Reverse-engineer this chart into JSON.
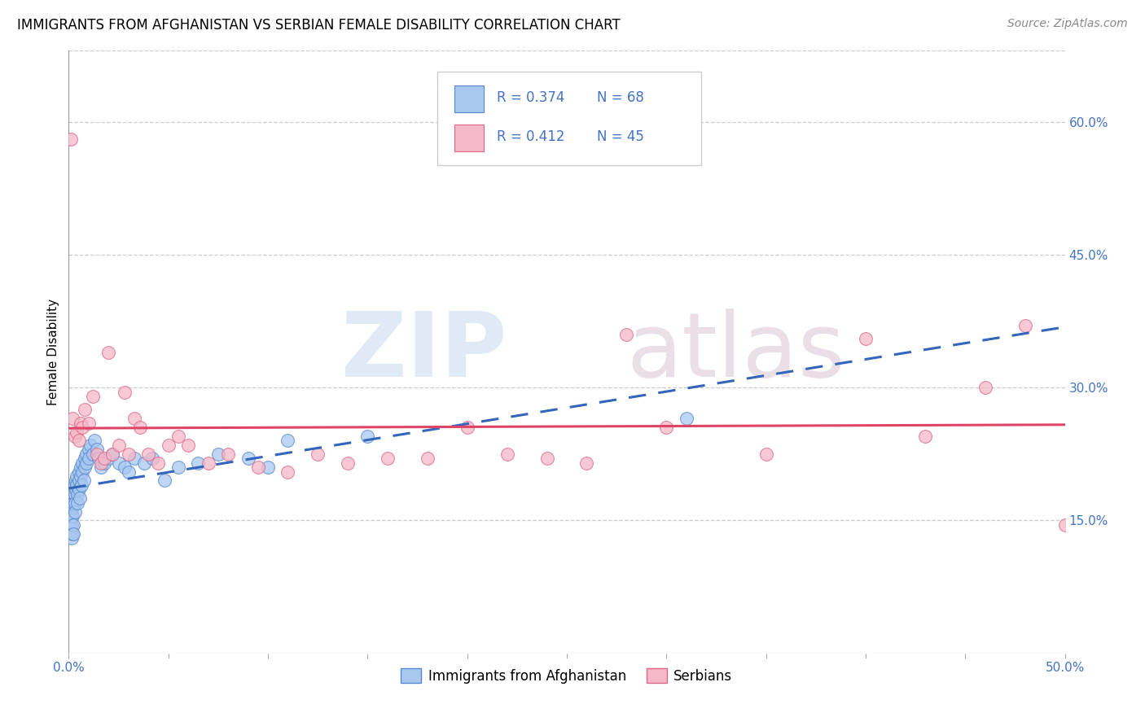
{
  "title": "IMMIGRANTS FROM AFGHANISTAN VS SERBIAN FEMALE DISABILITY CORRELATION CHART",
  "source": "Source: ZipAtlas.com",
  "ylabel": "Female Disability",
  "right_yticks": [
    "60.0%",
    "45.0%",
    "30.0%",
    "15.0%"
  ],
  "right_ytick_vals": [
    0.6,
    0.45,
    0.3,
    0.15
  ],
  "xlim": [
    0.0,
    0.5
  ],
  "ylim": [
    0.0,
    0.68
  ],
  "color_blue": "#a8c8f0",
  "color_pink": "#f5b8c8",
  "color_blue_dark": "#5588cc",
  "color_pink_dark": "#dd6688",
  "color_line_blue": "#3366bb",
  "color_line_pink": "#dd4466",
  "text_color_blue": "#4472c4",
  "text_color_r": "#4472c4",
  "text_color_n": "#4472c4",
  "watermark_zip_color": "#ccddf0",
  "watermark_atlas_color": "#ddc8d8",
  "afghanistan_x": [
    0.0005,
    0.0008,
    0.001,
    0.0012,
    0.0013,
    0.0014,
    0.0015,
    0.0015,
    0.0016,
    0.0017,
    0.0018,
    0.002,
    0.002,
    0.002,
    0.0022,
    0.0023,
    0.0025,
    0.0025,
    0.003,
    0.003,
    0.0032,
    0.0033,
    0.0035,
    0.0035,
    0.004,
    0.004,
    0.0042,
    0.0045,
    0.005,
    0.005,
    0.0052,
    0.0055,
    0.006,
    0.006,
    0.0065,
    0.007,
    0.007,
    0.0075,
    0.008,
    0.008,
    0.009,
    0.009,
    0.01,
    0.01,
    0.011,
    0.012,
    0.013,
    0.014,
    0.015,
    0.016,
    0.018,
    0.02,
    0.022,
    0.025,
    0.028,
    0.03,
    0.033,
    0.038,
    0.042,
    0.048,
    0.055,
    0.065,
    0.075,
    0.09,
    0.1,
    0.11,
    0.15,
    0.31
  ],
  "afghanistan_y": [
    0.145,
    0.155,
    0.16,
    0.15,
    0.14,
    0.13,
    0.165,
    0.155,
    0.145,
    0.135,
    0.17,
    0.175,
    0.165,
    0.155,
    0.145,
    0.135,
    0.18,
    0.17,
    0.19,
    0.18,
    0.17,
    0.16,
    0.195,
    0.185,
    0.2,
    0.19,
    0.18,
    0.17,
    0.205,
    0.195,
    0.185,
    0.175,
    0.21,
    0.2,
    0.19,
    0.215,
    0.205,
    0.195,
    0.22,
    0.21,
    0.225,
    0.215,
    0.23,
    0.22,
    0.235,
    0.225,
    0.24,
    0.23,
    0.22,
    0.21,
    0.215,
    0.22,
    0.225,
    0.215,
    0.21,
    0.205,
    0.22,
    0.215,
    0.22,
    0.195,
    0.21,
    0.215,
    0.225,
    0.22,
    0.21,
    0.24,
    0.245,
    0.265
  ],
  "serbian_x": [
    0.001,
    0.002,
    0.003,
    0.004,
    0.005,
    0.006,
    0.007,
    0.008,
    0.01,
    0.012,
    0.014,
    0.016,
    0.018,
    0.02,
    0.022,
    0.025,
    0.028,
    0.03,
    0.033,
    0.036,
    0.04,
    0.045,
    0.05,
    0.055,
    0.06,
    0.07,
    0.08,
    0.095,
    0.11,
    0.125,
    0.14,
    0.16,
    0.18,
    0.2,
    0.22,
    0.24,
    0.26,
    0.28,
    0.3,
    0.35,
    0.4,
    0.43,
    0.46,
    0.48,
    0.5
  ],
  "serbian_y": [
    0.58,
    0.265,
    0.245,
    0.25,
    0.24,
    0.26,
    0.255,
    0.275,
    0.26,
    0.29,
    0.225,
    0.215,
    0.22,
    0.34,
    0.225,
    0.235,
    0.295,
    0.225,
    0.265,
    0.255,
    0.225,
    0.215,
    0.235,
    0.245,
    0.235,
    0.215,
    0.225,
    0.21,
    0.205,
    0.225,
    0.215,
    0.22,
    0.22,
    0.255,
    0.225,
    0.22,
    0.215,
    0.36,
    0.255,
    0.225,
    0.355,
    0.245,
    0.3,
    0.37,
    0.145
  ]
}
